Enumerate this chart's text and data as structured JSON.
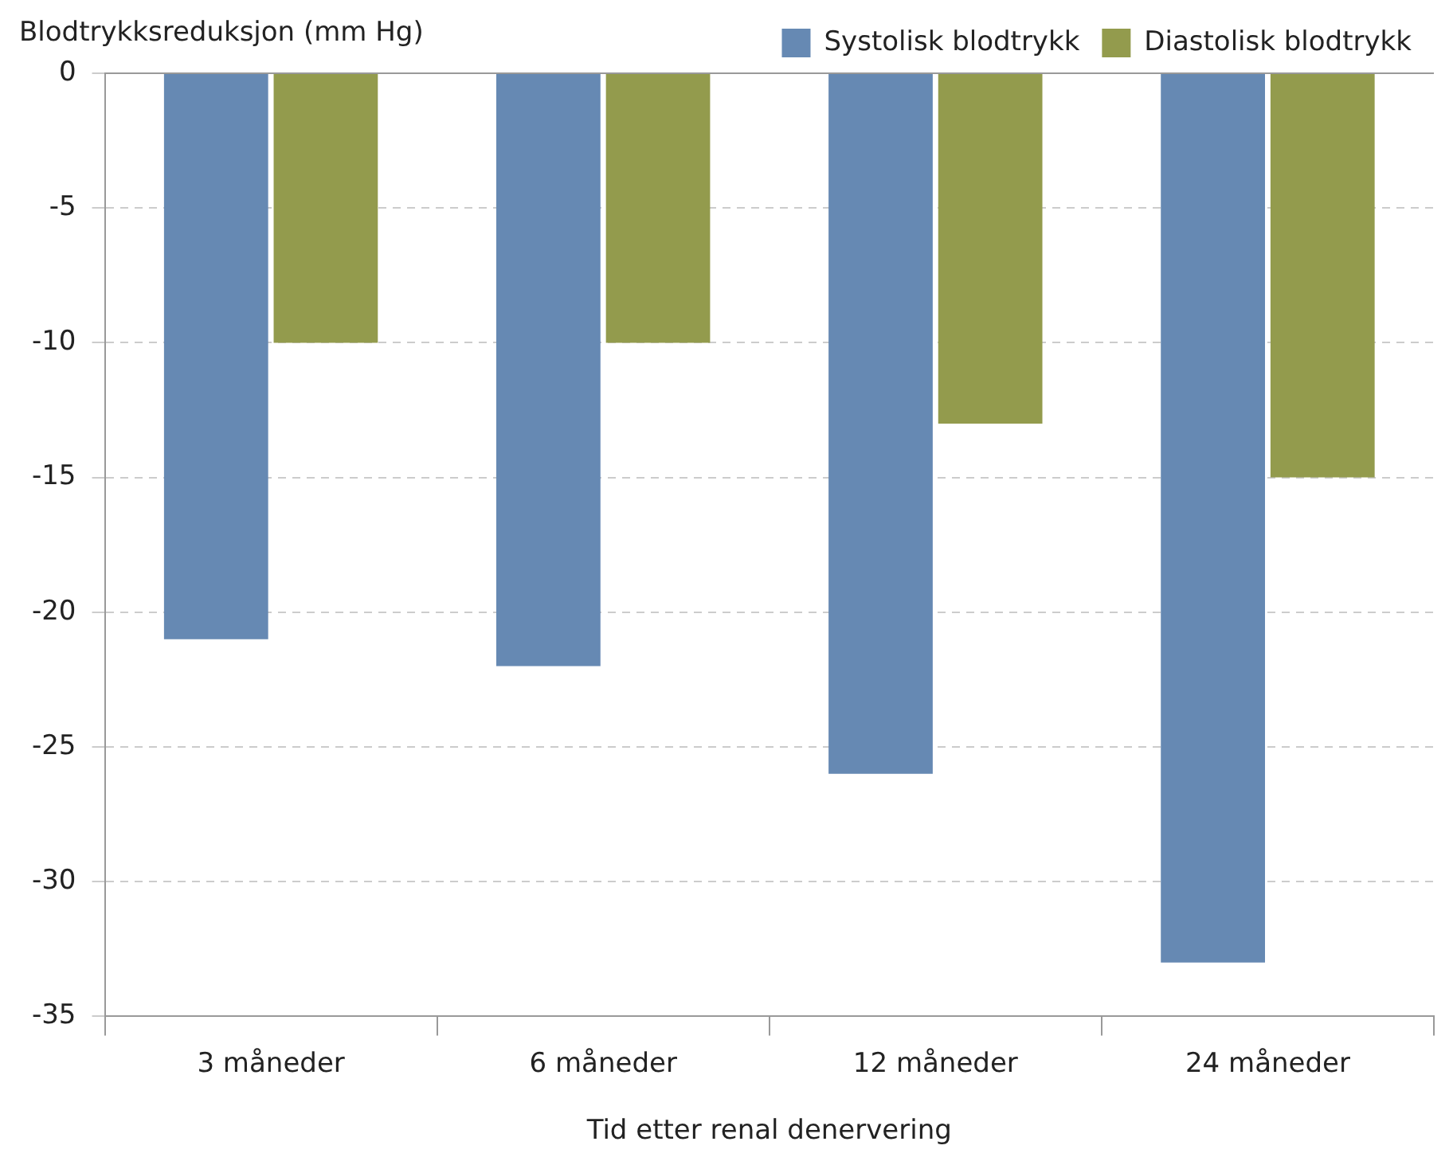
{
  "chart_data": {
    "type": "bar",
    "ylabel": "Blodtrykksreduksjon (mm Hg)",
    "xlabel": "Tid etter renal denervering",
    "categories": [
      "3 måneder",
      "6 måneder",
      "12 måneder",
      "24 måneder"
    ],
    "series": [
      {
        "name": "Systolisk blodtrykk",
        "color": "#6689b3",
        "values": [
          -21,
          -22,
          -26,
          -33
        ]
      },
      {
        "name": "Diastolisk blodtrykk",
        "color": "#939b4d",
        "values": [
          -10,
          -10,
          -13,
          -15
        ]
      }
    ],
    "ylim": [
      -35,
      0
    ],
    "yticks": [
      -35,
      -30,
      -25,
      -20,
      -15,
      -10,
      -5,
      0
    ],
    "grid": "y",
    "legend": "top right"
  }
}
